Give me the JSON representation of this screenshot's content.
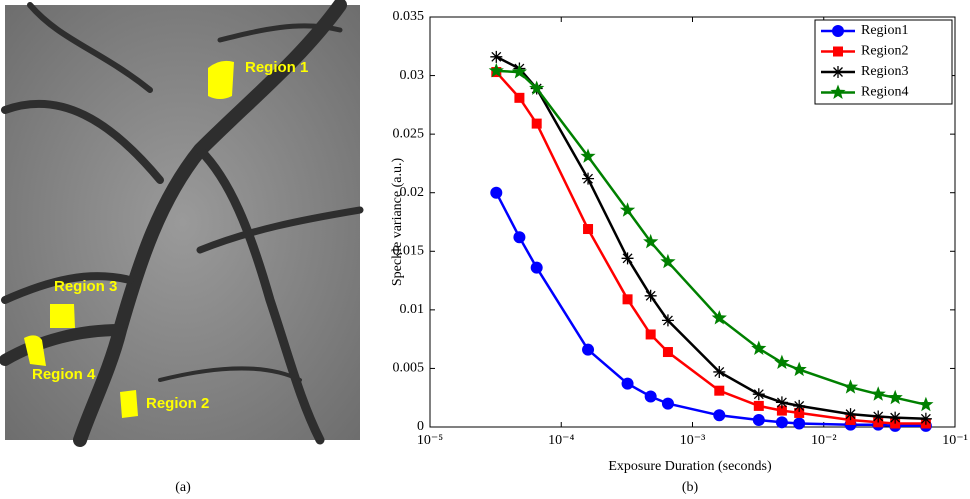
{
  "image_panel": {
    "caption": "(a)",
    "labels": [
      "Region 1",
      "Region 3",
      "Region 4",
      "Region 2"
    ]
  },
  "chart_data": {
    "type": "line",
    "caption": "(b)",
    "x_label": "Exposure Duration (seconds)",
    "y_label": "Speckle variance (a.u.)",
    "x_scale": "log",
    "x": [
      3.2e-05,
      4.8e-05,
      6.5e-05,
      0.00016,
      0.00032,
      0.00048,
      0.00065,
      0.0016,
      0.0032,
      0.0048,
      0.0065,
      0.016,
      0.026,
      0.035,
      0.06
    ],
    "xlim": [
      1e-05,
      0.1
    ],
    "xticks": [
      {
        "value": 1e-05,
        "label": "10⁻⁵"
      },
      {
        "value": 0.0001,
        "label": "10⁻⁴"
      },
      {
        "value": 0.001,
        "label": "10⁻³"
      },
      {
        "value": 0.01,
        "label": "10⁻²"
      },
      {
        "value": 0.1,
        "label": "10⁻¹"
      }
    ],
    "ylim": [
      0,
      0.035
    ],
    "yticks": [
      0,
      0.005,
      0.01,
      0.015,
      0.02,
      0.025,
      0.03,
      0.035
    ],
    "legend": "upper right",
    "series": [
      {
        "name": "Region1",
        "color": "#0000ff",
        "marker": "circle",
        "values": [
          0.02,
          0.0162,
          0.0136,
          0.0066,
          0.0037,
          0.0026,
          0.002,
          0.001,
          0.0006,
          0.0004,
          0.0003,
          0.0002,
          0.0002,
          0.0001,
          0.0001
        ]
      },
      {
        "name": "Region2",
        "color": "#ff0000",
        "marker": "square",
        "values": [
          0.0303,
          0.0281,
          0.0259,
          0.0169,
          0.0109,
          0.0079,
          0.0064,
          0.0031,
          0.0018,
          0.0014,
          0.0012,
          0.0006,
          0.0004,
          0.0003,
          0.0003
        ]
      },
      {
        "name": "Region3",
        "color": "#000000",
        "marker": "asterisk",
        "values": [
          0.0316,
          0.0306,
          0.0289,
          0.0212,
          0.0144,
          0.0112,
          0.0091,
          0.0047,
          0.0028,
          0.0021,
          0.0018,
          0.0011,
          0.0009,
          0.0008,
          0.0007
        ]
      },
      {
        "name": "Region4",
        "color": "#008000",
        "marker": "star",
        "values": [
          0.0304,
          0.0303,
          0.0289,
          0.0231,
          0.0185,
          0.0158,
          0.0141,
          0.0093,
          0.0067,
          0.0055,
          0.0049,
          0.0034,
          0.0028,
          0.0025,
          0.0019
        ]
      }
    ]
  }
}
